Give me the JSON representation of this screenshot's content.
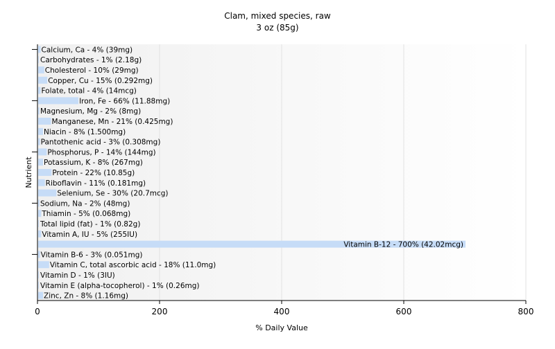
{
  "chart_data": {
    "type": "bar",
    "orientation": "horizontal",
    "title": "Clam, mixed species, raw",
    "subtitle": "3 oz (85g)",
    "xlabel": "% Daily Value",
    "ylabel": "Nutrient",
    "xlim": [
      0,
      800
    ],
    "xticks": [
      "0",
      "200",
      "400",
      "600",
      "800"
    ],
    "grid": true,
    "bar_color": "#c6dcf7",
    "categories": [
      "Calcium, Ca",
      "Carbohydrates",
      "Cholesterol",
      "Copper, Cu",
      "Folate, total",
      "Iron, Fe",
      "Magnesium, Mg",
      "Manganese, Mn",
      "Niacin",
      "Pantothenic acid",
      "Phosphorus, P",
      "Potassium, K",
      "Protein",
      "Riboflavin",
      "Selenium, Se",
      "Sodium, Na",
      "Thiamin",
      "Total lipid (fat)",
      "Vitamin A, IU",
      "Vitamin B-12",
      "Vitamin B-6",
      "Vitamin C, total ascorbic acid",
      "Vitamin D",
      "Vitamin E (alpha-tocopherol)",
      "Zinc, Zn"
    ],
    "values": [
      4,
      1,
      10,
      15,
      4,
      66,
      2,
      21,
      8,
      3,
      14,
      8,
      22,
      11,
      30,
      2,
      5,
      1,
      5,
      700,
      3,
      18,
      1,
      1,
      8
    ],
    "labels": [
      "Calcium, Ca - 4% (39mg)",
      "Carbohydrates - 1% (2.18g)",
      "Cholesterol - 10% (29mg)",
      "Copper, Cu - 15% (0.292mg)",
      "Folate, total - 4% (14mcg)",
      "Iron, Fe - 66% (11.88mg)",
      "Magnesium, Mg - 2% (8mg)",
      "Manganese, Mn - 21% (0.425mg)",
      "Niacin - 8% (1.500mg)",
      "Pantothenic acid - 3% (0.308mg)",
      "Phosphorus, P - 14% (144mg)",
      "Potassium, K - 8% (267mg)",
      "Protein - 22% (10.85g)",
      "Riboflavin - 11% (0.181mg)",
      "Selenium, Se - 30% (20.7mcg)",
      "Sodium, Na - 2% (48mg)",
      "Thiamin - 5% (0.068mg)",
      "Total lipid (fat) - 1% (0.82g)",
      "Vitamin A, IU - 5% (255IU)",
      "Vitamin B-12 - 700% (42.02mcg)",
      "Vitamin B-6 - 3% (0.051mg)",
      "Vitamin C, total ascorbic acid - 18% (11.0mg)",
      "Vitamin D - 1% (3IU)",
      "Vitamin E (alpha-tocopherol) - 1% (0.26mg)",
      "Zinc, Zn - 8% (1.16mg)"
    ]
  }
}
